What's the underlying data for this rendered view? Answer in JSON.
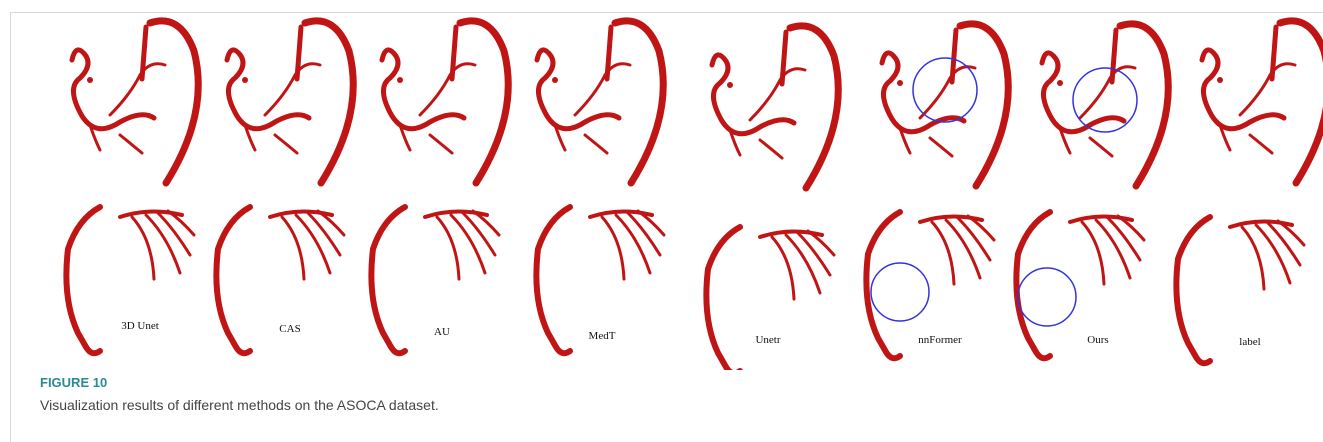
{
  "figure": {
    "labels": [
      "3D Unet",
      "CAS",
      "AU",
      "MedT",
      "Unetr",
      "nnFormer",
      "Ours",
      "label"
    ],
    "caption_label": "FIGURE 10",
    "caption": "Visualization results of different methods on the ASOCA dataset."
  }
}
